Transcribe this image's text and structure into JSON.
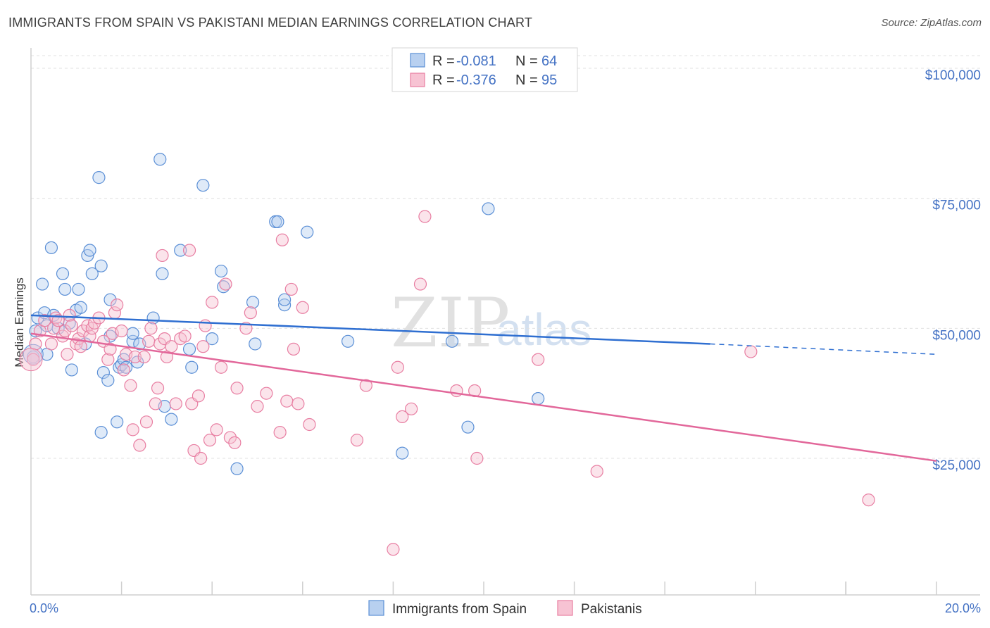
{
  "title": "IMMIGRANTS FROM SPAIN VS PAKISTANI MEDIAN EARNINGS CORRELATION CHART",
  "source": "Source: ZipAtlas.com",
  "watermark": {
    "zip": "ZIP",
    "atlas": "atlas"
  },
  "colors": {
    "blue": "#5b8fd6",
    "blue_fill": "#b8d0f0",
    "blue_line": "#2f6fd1",
    "pink": "#e87ea2",
    "pink_fill": "#f7c3d3",
    "pink_line": "#e2679a",
    "grid": "#d9d9d9",
    "axis_text": "#4472c4"
  },
  "legend": {
    "r_label": "R =",
    "n_label": "N =",
    "series": [
      {
        "r": "-0.081",
        "n": "64"
      },
      {
        "r": "-0.376",
        "n": "95"
      }
    ]
  },
  "chart_data": {
    "type": "scatter",
    "title": "IMMIGRANTS FROM SPAIN VS PAKISTANI MEDIAN EARNINGS CORRELATION CHART",
    "xlabel": "",
    "ylabel": "Median Earnings",
    "xlim": [
      0,
      20
    ],
    "ylim": [
      0,
      105000
    ],
    "x_tick_labels": [
      "0.0%",
      "20.0%"
    ],
    "y_ticks": [
      25000,
      50000,
      75000,
      100000
    ],
    "y_tick_labels": [
      "$25,000",
      "$50,000",
      "$75,000",
      "$100,000"
    ],
    "legend_position": "top-center",
    "series": [
      {
        "name": "Immigrants from Spain",
        "color": "#5b8fd6",
        "trend": {
          "x": [
            0,
            15,
            20
          ],
          "y": [
            52500,
            47000,
            45000
          ],
          "solid_until": 15
        },
        "points": [
          [
            0.05,
            44500
          ],
          [
            0.1,
            49500
          ],
          [
            0.15,
            52000
          ],
          [
            0.25,
            58500
          ],
          [
            0.3,
            53000
          ],
          [
            0.35,
            50500
          ],
          [
            0.35,
            45000
          ],
          [
            0.45,
            65500
          ],
          [
            0.5,
            52500
          ],
          [
            0.6,
            50000
          ],
          [
            0.7,
            60500
          ],
          [
            0.75,
            57500
          ],
          [
            0.85,
            51000
          ],
          [
            0.9,
            42000
          ],
          [
            1.0,
            53500
          ],
          [
            1.05,
            57500
          ],
          [
            1.1,
            54000
          ],
          [
            1.2,
            47000
          ],
          [
            1.25,
            64000
          ],
          [
            1.3,
            65000
          ],
          [
            1.35,
            60500
          ],
          [
            1.5,
            79000
          ],
          [
            1.55,
            30000
          ],
          [
            1.55,
            62000
          ],
          [
            1.6,
            41500
          ],
          [
            1.7,
            40000
          ],
          [
            1.75,
            48500
          ],
          [
            1.75,
            55500
          ],
          [
            1.9,
            32000
          ],
          [
            1.95,
            42500
          ],
          [
            2.0,
            43000
          ],
          [
            2.05,
            44000
          ],
          [
            2.1,
            42500
          ],
          [
            2.25,
            47500
          ],
          [
            2.25,
            49000
          ],
          [
            2.35,
            43500
          ],
          [
            2.4,
            47000
          ],
          [
            2.7,
            52000
          ],
          [
            2.85,
            82500
          ],
          [
            2.9,
            60500
          ],
          [
            2.95,
            35000
          ],
          [
            3.1,
            32500
          ],
          [
            3.3,
            65000
          ],
          [
            3.5,
            46000
          ],
          [
            3.55,
            42500
          ],
          [
            3.8,
            77500
          ],
          [
            4.0,
            48000
          ],
          [
            4.2,
            61000
          ],
          [
            4.25,
            58000
          ],
          [
            4.55,
            23000
          ],
          [
            4.9,
            55000
          ],
          [
            4.95,
            47000
          ],
          [
            5.4,
            70500
          ],
          [
            5.45,
            70500
          ],
          [
            5.6,
            54500
          ],
          [
            5.6,
            55500
          ],
          [
            6.1,
            68500
          ],
          [
            7.0,
            47500
          ],
          [
            8.2,
            26000
          ],
          [
            9.3,
            47500
          ],
          [
            9.65,
            31000
          ],
          [
            10.1,
            73000
          ],
          [
            11.2,
            36500
          ]
        ]
      },
      {
        "name": "Pakistanis",
        "color": "#e87ea2",
        "trend": {
          "x": [
            0,
            20
          ],
          "y": [
            49000,
            24500
          ],
          "solid_until": 20
        },
        "points": [
          [
            0.05,
            44000
          ],
          [
            0.1,
            47000
          ],
          [
            0.2,
            49500
          ],
          [
            0.3,
            51500
          ],
          [
            0.45,
            47000
          ],
          [
            0.5,
            50000
          ],
          [
            0.55,
            52000
          ],
          [
            0.6,
            51500
          ],
          [
            0.7,
            48500
          ],
          [
            0.75,
            49500
          ],
          [
            0.8,
            45000
          ],
          [
            0.85,
            52500
          ],
          [
            0.9,
            50500
          ],
          [
            1.0,
            47000
          ],
          [
            1.05,
            48000
          ],
          [
            1.15,
            49500
          ],
          [
            1.25,
            50500
          ],
          [
            1.3,
            48500
          ],
          [
            1.35,
            50000
          ],
          [
            1.4,
            51000
          ],
          [
            1.5,
            52000
          ],
          [
            1.6,
            47500
          ],
          [
            1.7,
            44000
          ],
          [
            1.75,
            46000
          ],
          [
            1.8,
            49000
          ],
          [
            1.85,
            53000
          ],
          [
            1.9,
            54500
          ],
          [
            2.0,
            49500
          ],
          [
            2.05,
            42000
          ],
          [
            2.1,
            45000
          ],
          [
            2.2,
            39000
          ],
          [
            2.25,
            30500
          ],
          [
            2.3,
            44500
          ],
          [
            2.4,
            27500
          ],
          [
            2.5,
            44500
          ],
          [
            2.55,
            32000
          ],
          [
            2.6,
            47500
          ],
          [
            2.65,
            50000
          ],
          [
            2.75,
            35500
          ],
          [
            2.8,
            38500
          ],
          [
            2.85,
            47000
          ],
          [
            2.9,
            64000
          ],
          [
            2.95,
            48000
          ],
          [
            3.0,
            44500
          ],
          [
            3.1,
            46500
          ],
          [
            3.2,
            35500
          ],
          [
            3.3,
            48000
          ],
          [
            3.4,
            48500
          ],
          [
            3.5,
            65000
          ],
          [
            3.55,
            35500
          ],
          [
            3.6,
            26500
          ],
          [
            3.7,
            37000
          ],
          [
            3.75,
            25000
          ],
          [
            3.8,
            46500
          ],
          [
            3.85,
            50500
          ],
          [
            3.95,
            28500
          ],
          [
            4.0,
            55000
          ],
          [
            4.1,
            30500
          ],
          [
            4.2,
            42500
          ],
          [
            4.3,
            58500
          ],
          [
            4.4,
            29000
          ],
          [
            4.5,
            28000
          ],
          [
            4.55,
            38500
          ],
          [
            4.75,
            50000
          ],
          [
            4.85,
            53000
          ],
          [
            5.0,
            35000
          ],
          [
            5.2,
            37500
          ],
          [
            5.5,
            30000
          ],
          [
            5.55,
            67000
          ],
          [
            5.65,
            36000
          ],
          [
            5.75,
            57500
          ],
          [
            5.8,
            46000
          ],
          [
            5.9,
            35500
          ],
          [
            6.0,
            54000
          ],
          [
            6.15,
            31500
          ],
          [
            7.2,
            28500
          ],
          [
            7.4,
            39000
          ],
          [
            8.1,
            42500
          ],
          [
            8.2,
            33000
          ],
          [
            8.4,
            34500
          ],
          [
            8.6,
            58500
          ],
          [
            8.7,
            71500
          ],
          [
            9.4,
            38000
          ],
          [
            9.8,
            38000
          ],
          [
            9.85,
            25000
          ],
          [
            11.2,
            44000
          ],
          [
            12.5,
            22500
          ],
          [
            15.9,
            45500
          ],
          [
            18.5,
            17000
          ],
          [
            8.0,
            7500
          ],
          [
            1.1,
            46500
          ]
        ]
      }
    ]
  }
}
